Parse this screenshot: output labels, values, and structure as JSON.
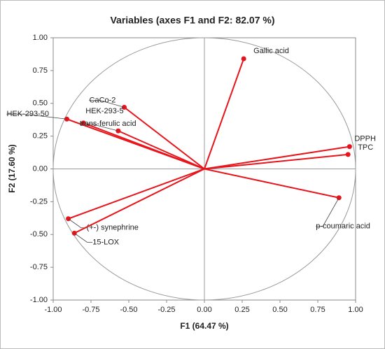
{
  "chart_data": {
    "type": "scatter",
    "title": "Variables (axes F1 and F2: 82.07 %)",
    "x_label": "F1 (64.47 %)",
    "y_label": "F2 (17.60 %)",
    "xlim": [
      -1,
      1
    ],
    "ylim": [
      -1,
      1
    ],
    "xticks": [
      {
        "value": -1,
        "label": "-1.00"
      },
      {
        "value": -0.75,
        "label": "-0.75"
      },
      {
        "value": -0.5,
        "label": "-0.50"
      },
      {
        "value": -0.25,
        "label": "-0.25"
      },
      {
        "value": 0,
        "label": "0.00"
      },
      {
        "value": 0.25,
        "label": "0.25"
      },
      {
        "value": 0.5,
        "label": "0.50"
      },
      {
        "value": 0.75,
        "label": "0.75"
      },
      {
        "value": 1,
        "label": "1.00"
      }
    ],
    "yticks": [
      {
        "value": -1,
        "label": "-1.00"
      },
      {
        "value": -0.75,
        "label": "-0.75"
      },
      {
        "value": -0.5,
        "label": "-0.50"
      },
      {
        "value": -0.25,
        "label": "-0.25"
      },
      {
        "value": 0,
        "label": "0.00"
      },
      {
        "value": 0.25,
        "label": "0.25"
      },
      {
        "value": 0.5,
        "label": "0.50"
      },
      {
        "value": 0.75,
        "label": "0.75"
      },
      {
        "value": 1,
        "label": "1.00"
      }
    ],
    "color": "#e8141b",
    "labels": [
      "Gallic acid",
      "DPPH",
      "TPC",
      "p-coumaric acid",
      "CaCo-2",
      "HEK-293-50",
      "HEK-293-5",
      "trans-ferulic acid",
      "(+-) synephrine",
      "15-LOX"
    ],
    "x": [
      0.26,
      0.96,
      0.95,
      0.89,
      -0.53,
      -0.91,
      -0.8,
      -0.57,
      -0.9,
      -0.86
    ],
    "y": [
      0.84,
      0.17,
      0.11,
      -0.22,
      0.47,
      0.38,
      0.35,
      0.29,
      -0.38,
      -0.49
    ]
  }
}
